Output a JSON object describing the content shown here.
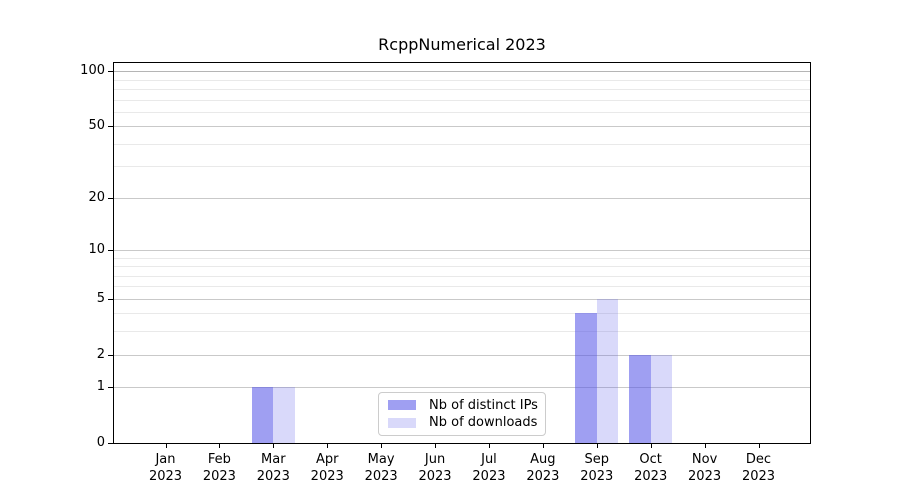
{
  "title": "RcppNumerical 2023",
  "chart_data": {
    "type": "bar",
    "title": "RcppNumerical 2023",
    "scale": "log1p",
    "grid": true,
    "legend_position": "lower center",
    "categories": [
      "Jan",
      "Feb",
      "Mar",
      "Apr",
      "May",
      "Jun",
      "Jul",
      "Aug",
      "Sep",
      "Oct",
      "Nov",
      "Dec"
    ],
    "year_label": "2023",
    "series": [
      {
        "name": "Nb of distinct IPs",
        "values": [
          0,
          0,
          1,
          0,
          0,
          0,
          0,
          0,
          4,
          2,
          0,
          0
        ],
        "color_base": "#5050e8",
        "alpha": 0.55
      },
      {
        "name": "Nb of downloads",
        "values": [
          0,
          0,
          1,
          0,
          0,
          0,
          0,
          0,
          5,
          2,
          0,
          0
        ],
        "color_base": "#5050e8",
        "alpha": 0.22
      }
    ],
    "y_ticks": [
      0,
      1,
      2,
      5,
      10,
      20,
      50,
      100
    ],
    "y_minor_gridlines": [
      3,
      4,
      6,
      7,
      8,
      9,
      30,
      40,
      60,
      70,
      80,
      90
    ],
    "ylim": [
      0,
      111
    ],
    "xlabel": "",
    "ylabel": "",
    "colors": {
      "major_grid": "#c9c9c9",
      "top_grid": "#b5b5b5",
      "minor_grid": "#e9e9e9",
      "axis": "#000000",
      "legend_border": "#cccccc"
    }
  }
}
